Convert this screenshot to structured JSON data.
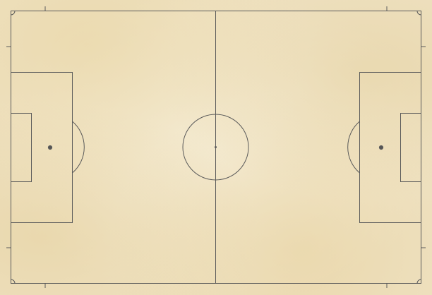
{
  "colors": {
    "paper": "#f2e7cc",
    "paper_stain": "#e6cf9c",
    "line": "#5a5a5a",
    "spot": "#555555"
  },
  "field": {
    "markings": [
      "touchlines",
      "goal-lines",
      "halfway-line",
      "center-circle",
      "penalty-areas",
      "goal-areas",
      "penalty-arcs",
      "penalty-spots",
      "corner-arcs"
    ]
  }
}
